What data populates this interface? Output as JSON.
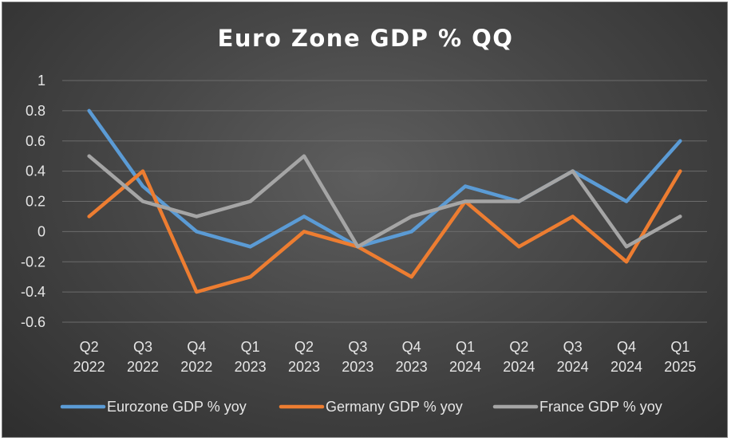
{
  "chart_data": {
    "type": "line",
    "title": "Euro Zone GDP % QQ",
    "xlabel": "",
    "ylabel": "",
    "ylim": [
      -0.6,
      1
    ],
    "y_ticks": [
      "1",
      "0.8",
      "0.6",
      "0.4",
      "0.2",
      "0",
      "-0.2",
      "-0.4",
      "-0.6"
    ],
    "categories": [
      [
        "Q2",
        "2022"
      ],
      [
        "Q3",
        "2022"
      ],
      [
        "Q4",
        "2022"
      ],
      [
        "Q1",
        "2023"
      ],
      [
        "Q2",
        "2023"
      ],
      [
        "Q3",
        "2023"
      ],
      [
        "Q4",
        "2023"
      ],
      [
        "Q1",
        "2024"
      ],
      [
        "Q2",
        "2024"
      ],
      [
        "Q3",
        "2024"
      ],
      [
        "Q4",
        "2024"
      ],
      [
        "Q1",
        "2025"
      ]
    ],
    "grid": "horizontal",
    "legend_position": "bottom",
    "series": [
      {
        "name": "Eurozone GDP % yoy",
        "color": "#5b9bd5",
        "values": [
          0.8,
          0.3,
          0.0,
          -0.1,
          0.1,
          -0.1,
          0.0,
          0.3,
          0.2,
          0.4,
          0.2,
          0.6
        ]
      },
      {
        "name": "Germany GDP % yoy",
        "color": "#ed7d31",
        "values": [
          0.1,
          0.4,
          -0.4,
          -0.3,
          0.0,
          -0.1,
          -0.3,
          0.2,
          -0.1,
          0.1,
          -0.2,
          0.4
        ]
      },
      {
        "name": "France GDP % yoy",
        "color": "#a5a5a5",
        "values": [
          0.5,
          0.2,
          0.1,
          0.2,
          0.5,
          -0.1,
          0.1,
          0.2,
          0.2,
          0.4,
          -0.1,
          0.1
        ]
      }
    ]
  }
}
